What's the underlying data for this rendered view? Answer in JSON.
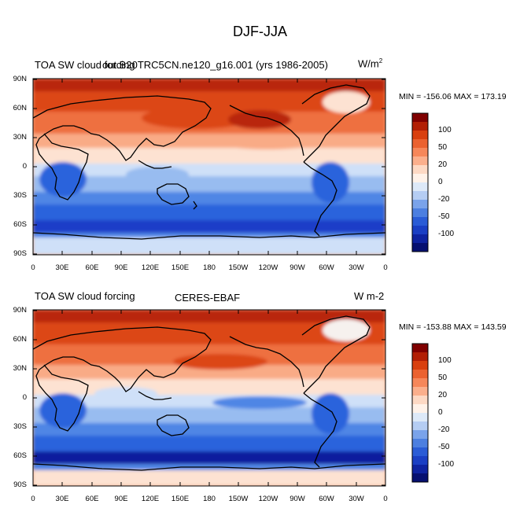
{
  "figure": {
    "title": "DJF-JJA"
  },
  "panels": [
    {
      "left_title": "TOA SW cloud forcing",
      "center_title": "out.B20TRC5CN.ne120_g16.001 (yrs 1986-2005)",
      "right_title": "W/m",
      "right_title_sup": "2",
      "stats": "MIN = -156.06 MAX = 173.19"
    },
    {
      "left_title": "TOA SW cloud forcing",
      "center_title": "CERES-EBAF",
      "right_title": "W m-2",
      "right_title_sup": "",
      "stats": "MIN = -153.88 MAX = 143.59"
    }
  ],
  "map_axes": {
    "lat_labels": [
      "90N",
      "60N",
      "30N",
      "0",
      "30S",
      "60S",
      "90S"
    ],
    "lon_labels": [
      "0",
      "30E",
      "60E",
      "90E",
      "120E",
      "150E",
      "180",
      "150W",
      "120W",
      "90W",
      "60W",
      "30W",
      "0"
    ]
  },
  "colorbar": {
    "labels": [
      "100",
      "50",
      "20",
      "0",
      "-20",
      "-50",
      "-100"
    ],
    "colors": [
      "#800000",
      "#b21f05",
      "#d9400f",
      "#eb6230",
      "#f6875a",
      "#fbaf8c",
      "#fdd9c4",
      "#fff2e9",
      "#dde9f8",
      "#b5cdf3",
      "#7aa3ea",
      "#4c7fe0",
      "#2a5cd6",
      "#1a3fc4",
      "#0e23a0",
      "#061070"
    ]
  },
  "map_colors": {
    "red_dark": "#b9260a",
    "red": "#dc4614",
    "orange": "#ee7040",
    "light_orange": "#f9ab86",
    "pale": "#fde2d2",
    "neutral": "#f6f1ee",
    "pale_blue": "#cfe0f8",
    "light_blue": "#98bcf0",
    "blue": "#4f86e5",
    "mid_blue": "#2c63dc",
    "deep_blue": "#1a3ec8",
    "navy": "#0c1f9e",
    "land_ice": "#e9eef7",
    "coast": "#000000"
  }
}
